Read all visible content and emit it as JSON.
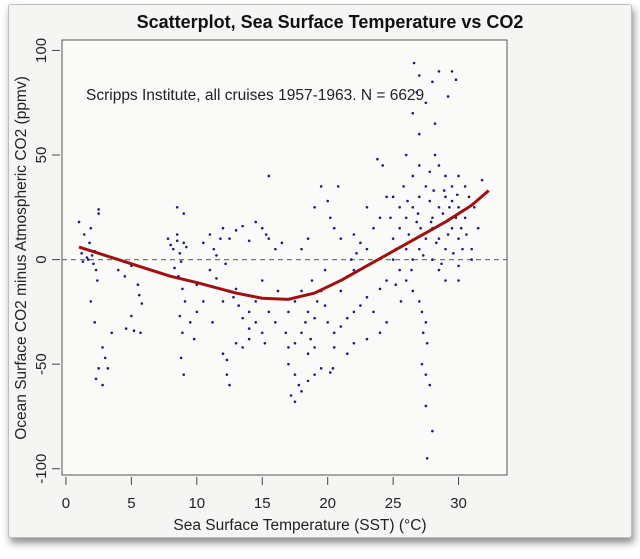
{
  "chart_data": {
    "type": "scatter",
    "title": "Scatterplot, Sea Surface Temperature vs CO2",
    "annotation": "Scripps Institute, all cruises 1957-1963. N = 6629",
    "xlabel": "Sea Surface Temperature (SST) (°C)",
    "ylabel": "Ocean Surface CO2 minus Atmospheric CO2 (ppmv)",
    "xlim": [
      -0.3,
      33.7
    ],
    "ylim": [
      -103,
      105
    ],
    "xticks": [
      0,
      5,
      10,
      15,
      20,
      25,
      30
    ],
    "yticks": [
      -100,
      -50,
      0,
      50,
      100
    ],
    "grid": false,
    "reference_line": {
      "y": 0,
      "style": "dashed",
      "color": "#777777"
    },
    "point_color": "#1a1a8c",
    "fit_color": "#a01010",
    "fit_curve": [
      [
        1,
        6
      ],
      [
        3,
        2
      ],
      [
        5,
        -2
      ],
      [
        8,
        -8
      ],
      [
        10,
        -11
      ],
      [
        13,
        -16
      ],
      [
        15,
        -18.5
      ],
      [
        17,
        -19
      ],
      [
        19,
        -16
      ],
      [
        21,
        -10
      ],
      [
        23,
        -3
      ],
      [
        25,
        4
      ],
      [
        27,
        11
      ],
      [
        29,
        18
      ],
      [
        31,
        26
      ],
      [
        32.3,
        33
      ]
    ],
    "points": [
      [
        1.2,
        3
      ],
      [
        1.5,
        5
      ],
      [
        1.6,
        1
      ],
      [
        1.8,
        8
      ],
      [
        2.0,
        2
      ],
      [
        2.1,
        -2
      ],
      [
        1.4,
        12
      ],
      [
        1.0,
        18
      ],
      [
        2.3,
        -5
      ],
      [
        2.5,
        24
      ],
      [
        2.5,
        22
      ],
      [
        1.9,
        15
      ],
      [
        2.2,
        4
      ],
      [
        1.7,
        0
      ],
      [
        1.3,
        -1
      ],
      [
        2.4,
        -10
      ],
      [
        1.9,
        -20
      ],
      [
        2.2,
        -30
      ],
      [
        2.8,
        -42
      ],
      [
        2.5,
        -52
      ],
      [
        2.3,
        -57
      ],
      [
        2.8,
        -60
      ],
      [
        3,
        -47
      ],
      [
        3.2,
        -52
      ],
      [
        3.5,
        -35
      ],
      [
        4,
        -5
      ],
      [
        4.5,
        -8
      ],
      [
        5,
        -3
      ],
      [
        5.5,
        -12
      ],
      [
        5.6,
        -17
      ],
      [
        5.8,
        -21
      ],
      [
        5,
        -27
      ],
      [
        4.6,
        -33
      ],
      [
        5.2,
        -34
      ],
      [
        5.7,
        -35
      ],
      [
        7.8,
        10
      ],
      [
        8,
        7
      ],
      [
        8.2,
        5
      ],
      [
        8.5,
        12
      ],
      [
        8.5,
        9
      ],
      [
        8.7,
        3
      ],
      [
        8.8,
        -1
      ],
      [
        9,
        8
      ],
      [
        9.2,
        6
      ],
      [
        8.3,
        -4
      ],
      [
        8.6,
        -8
      ],
      [
        8.9,
        -14
      ],
      [
        9.1,
        -20
      ],
      [
        8.7,
        -27
      ],
      [
        8.9,
        -35
      ],
      [
        8.8,
        -47
      ],
      [
        9,
        -55
      ],
      [
        8.5,
        25
      ],
      [
        9,
        22
      ],
      [
        9.5,
        -30
      ],
      [
        9.8,
        -38
      ],
      [
        10,
        -25
      ],
      [
        10.5,
        -20
      ],
      [
        10,
        -12
      ],
      [
        10.5,
        8
      ],
      [
        11,
        12
      ],
      [
        11.3,
        5
      ],
      [
        11.5,
        2
      ],
      [
        11.8,
        10
      ],
      [
        11,
        -5
      ],
      [
        11.5,
        -9
      ],
      [
        12,
        15
      ],
      [
        12.2,
        -2
      ],
      [
        12.5,
        10
      ],
      [
        13,
        14
      ],
      [
        13.5,
        16
      ],
      [
        14,
        9
      ],
      [
        14.5,
        18
      ],
      [
        15,
        15
      ],
      [
        15.3,
        12
      ],
      [
        15.5,
        10
      ],
      [
        12,
        -45
      ],
      [
        12.3,
        -48
      ],
      [
        11.2,
        -30
      ],
      [
        12,
        -20
      ],
      [
        12.5,
        -15
      ],
      [
        12.8,
        -18
      ],
      [
        13,
        -14
      ],
      [
        13.2,
        -22
      ],
      [
        13.5,
        -28
      ],
      [
        14,
        -25
      ],
      [
        14,
        -33
      ],
      [
        14.5,
        -30
      ],
      [
        15,
        -35
      ],
      [
        15.2,
        -40
      ],
      [
        13,
        -40
      ],
      [
        13.5,
        -42
      ],
      [
        14,
        -38
      ],
      [
        14.5,
        -20
      ],
      [
        15,
        -10
      ],
      [
        15.5,
        -25
      ],
      [
        16,
        -30
      ],
      [
        16.2,
        -15
      ],
      [
        12.3,
        -55
      ],
      [
        12.5,
        -60
      ],
      [
        16,
        5
      ],
      [
        16.5,
        8
      ],
      [
        15.5,
        40
      ],
      [
        17,
        -50
      ],
      [
        17.5,
        -55
      ],
      [
        17.8,
        -60
      ],
      [
        17.2,
        -65
      ],
      [
        17.5,
        -68
      ],
      [
        18,
        -63
      ],
      [
        18.5,
        -58
      ],
      [
        19,
        -55
      ],
      [
        19.5,
        -52
      ],
      [
        20.2,
        -54
      ],
      [
        20.4,
        -52
      ],
      [
        18.5,
        -45
      ],
      [
        17.5,
        -40
      ],
      [
        18,
        -35
      ],
      [
        18.3,
        -30
      ],
      [
        18.5,
        -25
      ],
      [
        18.7,
        -38
      ],
      [
        19,
        -28
      ],
      [
        19.2,
        -20
      ],
      [
        19.5,
        -15
      ],
      [
        19.8,
        -22
      ],
      [
        20,
        -30
      ],
      [
        20.5,
        -35
      ],
      [
        21,
        -32
      ],
      [
        21.5,
        -28
      ],
      [
        22,
        -25
      ],
      [
        22.5,
        -22
      ],
      [
        23,
        -18
      ],
      [
        23.5,
        -25
      ],
      [
        24,
        -14
      ],
      [
        24.5,
        -10
      ],
      [
        17,
        -25
      ],
      [
        17.5,
        -20
      ],
      [
        18,
        -15
      ],
      [
        16.8,
        -35
      ],
      [
        17,
        -42
      ],
      [
        18,
        5
      ],
      [
        18.5,
        10
      ],
      [
        19,
        25
      ],
      [
        19.5,
        35
      ],
      [
        20,
        28
      ],
      [
        20.2,
        20
      ],
      [
        20.5,
        15
      ],
      [
        21,
        10
      ],
      [
        20.8,
        35
      ],
      [
        18.8,
        -10
      ],
      [
        19.8,
        -5
      ],
      [
        21,
        -15
      ],
      [
        21.5,
        -8
      ],
      [
        22,
        -5
      ],
      [
        21.8,
        0
      ],
      [
        22.2,
        3
      ],
      [
        22.5,
        8
      ],
      [
        22,
        12
      ],
      [
        23,
        5
      ],
      [
        23.5,
        15
      ],
      [
        23,
        25
      ],
      [
        24,
        20
      ],
      [
        24.5,
        30
      ],
      [
        23.8,
        48
      ],
      [
        24.2,
        45
      ],
      [
        22,
        -40
      ],
      [
        23,
        -38
      ],
      [
        24,
        -35
      ],
      [
        24.5,
        -30
      ],
      [
        20.5,
        -42
      ],
      [
        21.5,
        -45
      ],
      [
        19,
        -42
      ],
      [
        25,
        10
      ],
      [
        25.5,
        15
      ],
      [
        26,
        20
      ],
      [
        26.5,
        25
      ],
      [
        27,
        30
      ],
      [
        27.5,
        35
      ],
      [
        28,
        20
      ],
      [
        28.5,
        25
      ],
      [
        29,
        30
      ],
      [
        29.5,
        28
      ],
      [
        30,
        25
      ],
      [
        30.5,
        20
      ],
      [
        25,
        0
      ],
      [
        25.5,
        -5
      ],
      [
        26,
        -10
      ],
      [
        26.5,
        -15
      ],
      [
        27,
        -20
      ],
      [
        27.2,
        -25
      ],
      [
        27.5,
        -30
      ],
      [
        27.3,
        -35
      ],
      [
        27.6,
        -40
      ],
      [
        26,
        5
      ],
      [
        26.5,
        0
      ],
      [
        27,
        5
      ],
      [
        27.5,
        10
      ],
      [
        28,
        15
      ],
      [
        28.5,
        10
      ],
      [
        29,
        5
      ],
      [
        29.5,
        15
      ],
      [
        30,
        10
      ],
      [
        30.3,
        5
      ],
      [
        28,
        0
      ],
      [
        28.5,
        -5
      ],
      [
        29,
        -10
      ],
      [
        30,
        -3
      ],
      [
        29.5,
        35
      ],
      [
        29,
        40
      ],
      [
        30,
        40
      ],
      [
        28.5,
        45
      ],
      [
        28.2,
        50
      ],
      [
        27.8,
        42
      ],
      [
        27,
        45
      ],
      [
        26.5,
        40
      ],
      [
        25.8,
        35
      ],
      [
        25,
        30
      ],
      [
        25.5,
        25
      ],
      [
        24.8,
        20
      ],
      [
        26,
        50
      ],
      [
        27,
        60
      ],
      [
        26.5,
        70
      ],
      [
        26.8,
        80
      ],
      [
        27,
        88
      ],
      [
        26.6,
        94
      ],
      [
        28,
        85
      ],
      [
        28.5,
        90
      ],
      [
        29.5,
        90
      ],
      [
        29.8,
        86
      ],
      [
        27.5,
        75
      ],
      [
        28.2,
        65
      ],
      [
        29.2,
        78
      ],
      [
        27.2,
        -50
      ],
      [
        27.5,
        -55
      ],
      [
        27.8,
        -60
      ],
      [
        27.5,
        -70
      ],
      [
        28,
        -82
      ],
      [
        27.6,
        -95
      ],
      [
        30,
        -10
      ],
      [
        31,
        5
      ],
      [
        31.5,
        15
      ],
      [
        31.8,
        38
      ],
      [
        31,
        0
      ],
      [
        30.8,
        30
      ],
      [
        29.8,
        20
      ],
      [
        28.8,
        22
      ],
      [
        27.8,
        28
      ],
      [
        26.8,
        18
      ],
      [
        26.2,
        12
      ],
      [
        25.2,
        5
      ],
      [
        29.2,
        12
      ],
      [
        30.2,
        15
      ],
      [
        28.3,
        8
      ],
      [
        27.3,
        2
      ],
      [
        26.4,
        -5
      ],
      [
        28.7,
        -2
      ],
      [
        29.6,
        3
      ],
      [
        30.6,
        12
      ],
      [
        31.2,
        25
      ],
      [
        30.5,
        35
      ],
      [
        29.3,
        25
      ],
      [
        28.1,
        33
      ],
      [
        27.1,
        15
      ],
      [
        26.1,
        28
      ],
      [
        25.6,
        -20
      ],
      [
        25.2,
        -12
      ],
      [
        28.9,
        33
      ],
      [
        29.9,
        31
      ],
      [
        26.9,
        22
      ],
      [
        27.9,
        18
      ]
    ]
  }
}
